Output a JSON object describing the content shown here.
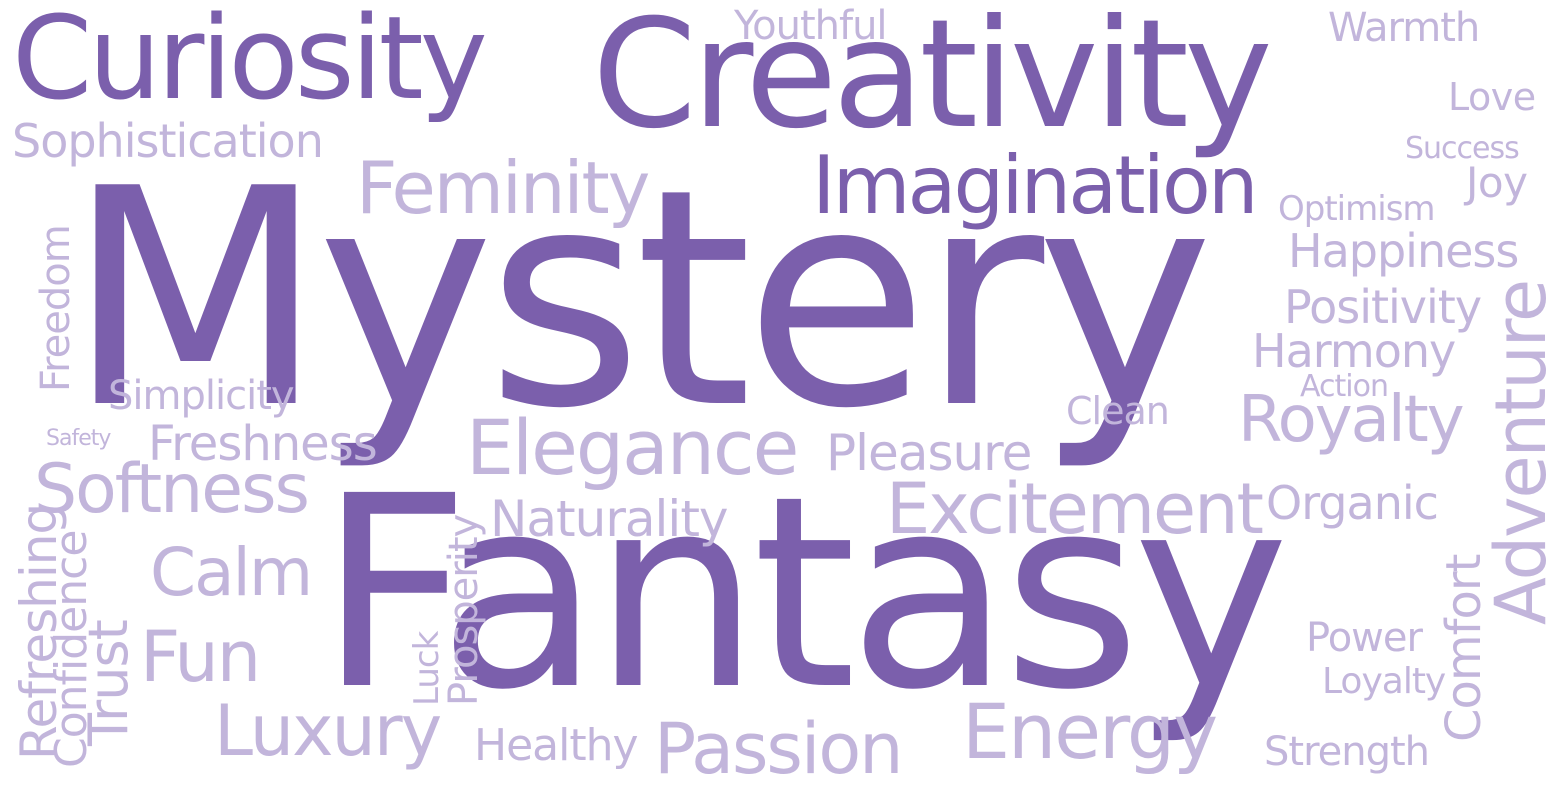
{
  "colors": {
    "dark": "#7b5fac",
    "light": "#c2b5db",
    "background": "#ffffff"
  },
  "words": {
    "mystery": "Mystery",
    "fantasy": "Fantasy",
    "creativity": "Creativity",
    "curiosity": "Curiosity",
    "imagination": "Imagination",
    "youthful": "Youthful",
    "warmth": "Warmth",
    "love": "Love",
    "success": "Success",
    "joy": "Joy",
    "optimism": "Optimism",
    "sophistication": "Sophistication",
    "feminity": "Feminity",
    "happiness": "Happiness",
    "positivity": "Positivity",
    "harmony": "Harmony",
    "action": "Action",
    "adventure": "Adventure",
    "freedom": "Freedom",
    "simplicity": "Simplicity",
    "safety": "Safety",
    "freshness": "Freshness",
    "softness": "Softness",
    "clean": "Clean",
    "royalty": "Royalty",
    "elegance": "Elegance",
    "pleasure": "Pleasure",
    "naturality": "Naturality",
    "excitement": "Excitement",
    "organic": "Organic",
    "calm": "Calm",
    "refreshing": "Refreshing",
    "confidence": "Confidence",
    "trust": "Trust",
    "fun": "Fun",
    "luck": "Luck",
    "prosperity": "Prosperity",
    "comfort": "Comfort",
    "power": "Power",
    "loyalty": "Loyalty",
    "luxury": "Luxury",
    "healthy": "Healthy",
    "passion": "Passion",
    "energy": "Energy",
    "strength": "Strength"
  }
}
